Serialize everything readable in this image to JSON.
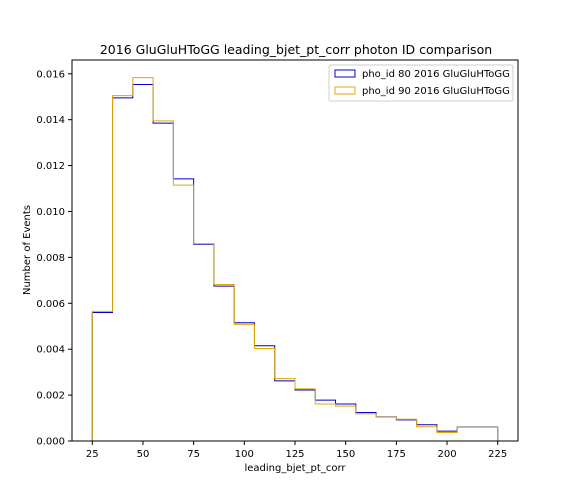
{
  "chart_data": {
    "type": "step-histogram",
    "title": "2016 GluGluHToGG leading_bjet_pt_corr photon ID comparison",
    "xlabel": "leading_bjet_pt_corr",
    "ylabel": "Number of Events",
    "xlim": [
      15,
      235
    ],
    "ylim": [
      0,
      0.0166
    ],
    "x_ticks": [
      25,
      50,
      75,
      100,
      125,
      150,
      175,
      200,
      225
    ],
    "y_ticks": [
      0.0,
      0.002,
      0.004,
      0.006,
      0.008,
      0.01,
      0.012,
      0.014,
      0.016
    ],
    "x_tick_labels": [
      "25",
      "50",
      "75",
      "100",
      "125",
      "150",
      "175",
      "200",
      "225"
    ],
    "y_tick_labels": [
      "0.000",
      "0.002",
      "0.004",
      "0.006",
      "0.008",
      "0.010",
      "0.012",
      "0.014",
      "0.016"
    ],
    "bin_edges": [
      25,
      35,
      45,
      55,
      65,
      75,
      85,
      95,
      105,
      115,
      125,
      135,
      145,
      155,
      165,
      175,
      185,
      195,
      205,
      215,
      225
    ],
    "legend_position": "top-right",
    "series": [
      {
        "name": "pho_id 80 2016 GluGluHToGG",
        "color": "#0000cc",
        "values": [
          0.0056,
          0.01495,
          0.01553,
          0.01385,
          0.01142,
          0.00857,
          0.00675,
          0.00515,
          0.00415,
          0.00262,
          0.00222,
          0.00178,
          0.00161,
          0.00124,
          0.00105,
          0.00092,
          0.00071,
          0.00043,
          0.00061,
          0.00061
        ]
      },
      {
        "name": "pho_id 90 2016 GluGluHToGG",
        "color": "#e6a700",
        "values": [
          0.00565,
          0.01505,
          0.01583,
          0.01395,
          0.01115,
          0.0086,
          0.00682,
          0.00508,
          0.00403,
          0.00272,
          0.00227,
          0.00161,
          0.00152,
          0.00118,
          0.00104,
          0.00095,
          0.00062,
          0.00037,
          0.0006,
          0.0006
        ]
      }
    ]
  }
}
